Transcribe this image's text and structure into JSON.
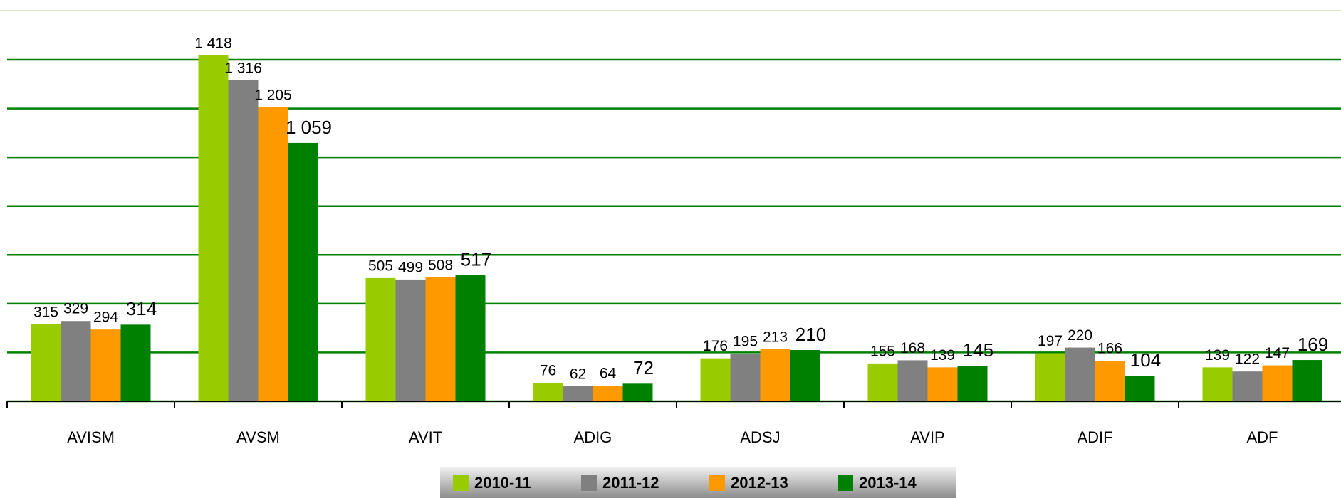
{
  "chart_data": {
    "type": "bar",
    "categories": [
      "AVISM",
      "AVSM",
      "AVIT",
      "ADIG",
      "ADSJ",
      "AVIP",
      "ADIF",
      "ADF"
    ],
    "series": [
      {
        "name": "2010-11",
        "color": "#99cc00",
        "values": [
          315,
          1418,
          505,
          76,
          176,
          155,
          197,
          139
        ],
        "value_labels": [
          "315",
          "1 418",
          "505",
          "76",
          "176",
          "155",
          "197",
          "139"
        ]
      },
      {
        "name": "2011-12",
        "color": "#808080",
        "values": [
          329,
          1316,
          499,
          62,
          195,
          168,
          220,
          122
        ],
        "value_labels": [
          "329",
          "1 316",
          "499",
          "62",
          "195",
          "168",
          "220",
          "122"
        ]
      },
      {
        "name": "2012-13",
        "color": "#ff9900",
        "values": [
          294,
          1205,
          508,
          64,
          213,
          139,
          166,
          147
        ],
        "value_labels": [
          "294",
          "1 205",
          "508",
          "64",
          "213",
          "139",
          "166",
          "147"
        ]
      },
      {
        "name": "2013-14",
        "color": "#008000",
        "values": [
          314,
          1059,
          517,
          72,
          210,
          145,
          104,
          169
        ],
        "value_labels": [
          "314",
          "1 059",
          "517",
          "72",
          "210",
          "145",
          "104",
          "169"
        ]
      }
    ],
    "ylim": [
      0,
      1400
    ],
    "yticks": [
      0,
      200,
      400,
      600,
      800,
      1000,
      1200,
      1400
    ],
    "grid": true,
    "grid_color": "#008000",
    "legend": "bottom"
  }
}
